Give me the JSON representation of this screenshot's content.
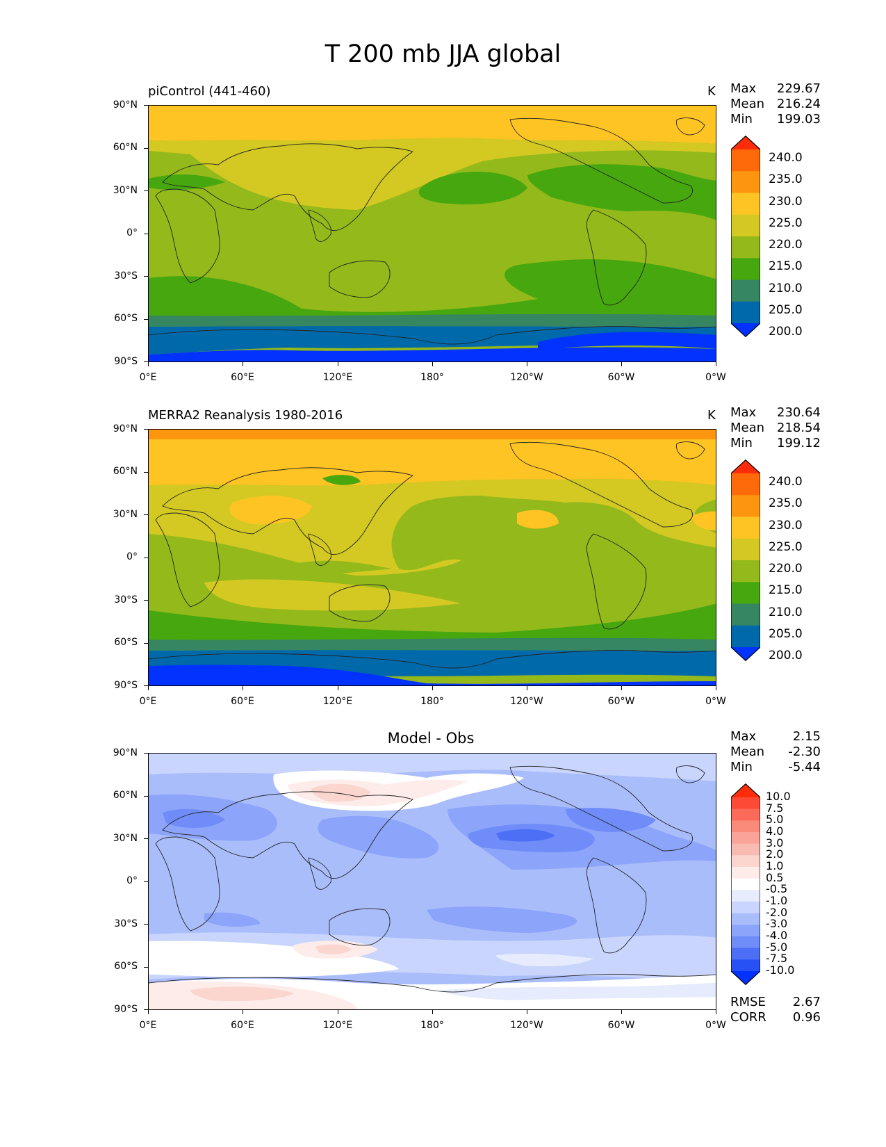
{
  "title": "T 200 mb JJA global",
  "lat_labels": [
    "90°N",
    "60°N",
    "30°N",
    "0°",
    "30°S",
    "60°S",
    "90°S"
  ],
  "lon_labels": [
    "0°E",
    "60°E",
    "120°E",
    "180°",
    "120°W",
    "60°W",
    "0°W"
  ],
  "panels": [
    {
      "title": "piControl (441-460)",
      "units": "K",
      "stats": {
        "max_label": "Max",
        "max": "229.67",
        "mean_label": "Mean",
        "mean": "216.24",
        "min_label": "Min",
        "min": "199.03"
      },
      "colorbar": {
        "levels": [
          "240.0",
          "235.0",
          "230.0",
          "225.0",
          "220.0",
          "215.0",
          "210.0",
          "205.0",
          "200.0"
        ],
        "colors": [
          "#fe2c09",
          "#fe6a0a",
          "#fe950e",
          "#fec424",
          "#d3c922",
          "#93b91b",
          "#47a70f",
          "#368761",
          "#0069a9",
          "#0132fe"
        ]
      }
    },
    {
      "title": "MERRA2 Reanalysis 1980-2016",
      "units": "K",
      "stats": {
        "max_label": "Max",
        "max": "230.64",
        "mean_label": "Mean",
        "mean": "218.54",
        "min_label": "Min",
        "min": "199.12"
      },
      "colorbar": {
        "levels": [
          "240.0",
          "235.0",
          "230.0",
          "225.0",
          "220.0",
          "215.0",
          "210.0",
          "205.0",
          "200.0"
        ],
        "colors": [
          "#fe2c09",
          "#fe6a0a",
          "#fe950e",
          "#fec424",
          "#d3c922",
          "#93b91b",
          "#47a70f",
          "#368761",
          "#0069a9",
          "#0132fe"
        ]
      }
    },
    {
      "title": "Model - Obs",
      "units": "",
      "stats": {
        "max_label": "Max",
        "max": "2.15",
        "mean_label": "Mean",
        "mean": "-2.30",
        "min_label": "Min",
        "min": "-5.44"
      },
      "colorbar": {
        "levels": [
          "10.0",
          "7.5",
          "5.0",
          "4.0",
          "3.0",
          "2.0",
          "1.0",
          "0.5",
          "-0.5",
          "-1.0",
          "-2.0",
          "-3.0",
          "-4.0",
          "-5.0",
          "-7.5",
          "-10.0"
        ],
        "colors": [
          "#fe2c09",
          "#fd4a36",
          "#fc6a5a",
          "#fa8a7a",
          "#f9a399",
          "#f8bbb2",
          "#fad6cf",
          "#fdece9",
          "#ffffff",
          "#e6ecfd",
          "#c9d5fc",
          "#aabdfb",
          "#8ca4fa",
          "#6f8cf8",
          "#4d6ff6",
          "#2751f5",
          "#0132fe"
        ]
      },
      "rmse_label": "RMSE",
      "rmse": "2.67",
      "corr_label": "CORR",
      "corr": "0.96"
    }
  ]
}
